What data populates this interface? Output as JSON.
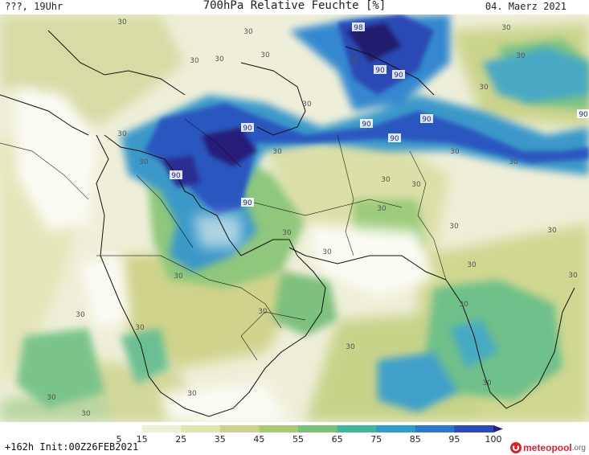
{
  "header": {
    "left": "???, 19Uhr",
    "title": "700hPa Relative Feuchte [%]",
    "date": "04. Maerz 2021"
  },
  "map": {
    "contour_labels": {
      "low": "30",
      "high": "90",
      "peak": "98"
    }
  },
  "colorbar": {
    "ticks": [
      "5",
      "15",
      "25",
      "35",
      "45",
      "55",
      "65",
      "75",
      "85",
      "95",
      "100"
    ],
    "colors": [
      "#ffffff",
      "#eef0d6",
      "#e2e4b2",
      "#cdd38e",
      "#a9c878",
      "#7cc07d",
      "#43b39a",
      "#2e9ec9",
      "#2e78cc",
      "#2a4bb8",
      "#2a1e7d"
    ]
  },
  "footer": {
    "run": "+162h Init:00Z26FEB2021",
    "logo_meteo": "meteo",
    "logo_pool": "pool",
    "logo_org": ".org"
  }
}
